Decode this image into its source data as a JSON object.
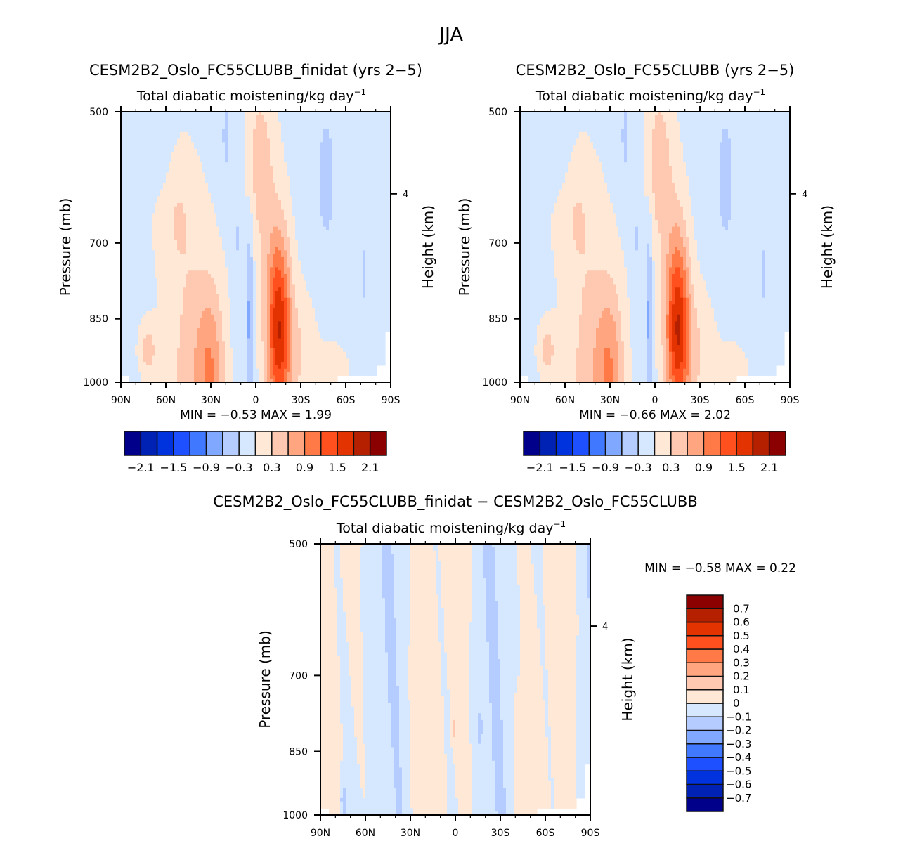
{
  "figure_title": "JJA",
  "chart_data": [
    {
      "type": "heatmap",
      "id": "panel1",
      "title": "CESM2B2_Oslo_FC55CLUBB_finidat (yrs 2−5)",
      "subtitle": "Total diabatic moistening/kg day",
      "subtitle_sup": "−1",
      "xlabel": "",
      "ylabel": "Pressure (mb)",
      "ylabel_right": "Height (km)",
      "x_ticks": [
        "90N",
        "60N",
        "30N",
        "0",
        "30S",
        "60S",
        "90S"
      ],
      "x_range": [
        90,
        -90
      ],
      "y_ticks": [
        "500",
        "700",
        "850",
        "1000"
      ],
      "y_tick_values": [
        500,
        700,
        850,
        1000
      ],
      "y_range": [
        500,
        1000
      ],
      "right_ticks": [
        "4"
      ],
      "right_tick_pressure": 617,
      "stats": "MIN =   −0.53   MAX =    1.99",
      "min": -0.53,
      "max": 1.99,
      "colorbar": {
        "orientation": "horizontal",
        "levels": [
          -2.1,
          -1.8,
          -1.5,
          -1.2,
          -0.9,
          -0.6,
          -0.3,
          0,
          0.3,
          0.6,
          0.9,
          1.2,
          1.5,
          1.8,
          2.1
        ],
        "labels": [
          "−2.1",
          "−1.5",
          "−0.9",
          "−0.3",
          "0.3",
          "0.9",
          "1.5",
          "2.1"
        ],
        "colors": [
          "#00008b",
          "#0022b4",
          "#0033dd",
          "#1e50ff",
          "#4078ff",
          "#80a8ff",
          "#b4ccff",
          "#d6e8ff",
          "#ffe8d6",
          "#ffc8b0",
          "#ffa680",
          "#ff7a46",
          "#ff501e",
          "#e33300",
          "#b42000",
          "#8b0000"
        ]
      },
      "field_peak": 1.99,
      "field_trough": -0.53
    },
    {
      "type": "heatmap",
      "id": "panel2",
      "title": "CESM2B2_Oslo_FC55CLUBB (yrs 2−5)",
      "subtitle": "Total diabatic moistening/kg day",
      "subtitle_sup": "−1",
      "ylabel": "Pressure (mb)",
      "ylabel_right": "Height (km)",
      "x_ticks": [
        "90N",
        "60N",
        "30N",
        "0",
        "30S",
        "60S",
        "90S"
      ],
      "x_range": [
        90,
        -90
      ],
      "y_ticks": [
        "500",
        "700",
        "850",
        "1000"
      ],
      "y_tick_values": [
        500,
        700,
        850,
        1000
      ],
      "y_range": [
        500,
        1000
      ],
      "right_ticks": [
        "4"
      ],
      "right_tick_pressure": 617,
      "stats": "MIN =   −0.66   MAX =    2.02",
      "min": -0.66,
      "max": 2.02,
      "colorbar": {
        "orientation": "horizontal",
        "levels": [
          -2.1,
          -1.8,
          -1.5,
          -1.2,
          -0.9,
          -0.6,
          -0.3,
          0,
          0.3,
          0.6,
          0.9,
          1.2,
          1.5,
          1.8,
          2.1
        ],
        "labels": [
          "−2.1",
          "−1.5",
          "−0.9",
          "−0.3",
          "0.3",
          "0.9",
          "1.5",
          "2.1"
        ],
        "colors": [
          "#00008b",
          "#0022b4",
          "#0033dd",
          "#1e50ff",
          "#4078ff",
          "#80a8ff",
          "#b4ccff",
          "#d6e8ff",
          "#ffe8d6",
          "#ffc8b0",
          "#ffa680",
          "#ff7a46",
          "#ff501e",
          "#e33300",
          "#b42000",
          "#8b0000"
        ]
      },
      "field_peak": 2.02,
      "field_trough": -0.66
    },
    {
      "type": "heatmap",
      "id": "panel3",
      "title": "CESM2B2_Oslo_FC55CLUBB_finidat − CESM2B2_Oslo_FC55CLUBB",
      "subtitle": "Total diabatic moistening/kg day",
      "subtitle_sup": "−1",
      "ylabel": "Pressure (mb)",
      "ylabel_right": "Height (km)",
      "x_ticks": [
        "90N",
        "60N",
        "30N",
        "0",
        "30S",
        "60S",
        "90S"
      ],
      "x_range": [
        90,
        -90
      ],
      "y_ticks": [
        "500",
        "700",
        "850",
        "1000"
      ],
      "y_tick_values": [
        500,
        700,
        850,
        1000
      ],
      "y_range": [
        500,
        1000
      ],
      "right_ticks": [
        "4"
      ],
      "right_tick_pressure": 617,
      "stats": "MIN =   −0.58   MAX =    0.22",
      "min": -0.58,
      "max": 0.22,
      "colorbar": {
        "orientation": "vertical",
        "levels": [
          -0.7,
          -0.6,
          -0.5,
          -0.4,
          -0.3,
          -0.2,
          -0.1,
          0,
          0.1,
          0.2,
          0.3,
          0.4,
          0.5,
          0.6,
          0.7
        ],
        "labels": [
          "−0.7",
          "−0.6",
          "−0.5",
          "−0.4",
          "−0.3",
          "−0.2",
          "−0.1",
          "0",
          "0.1",
          "0.2",
          "0.3",
          "0.4",
          "0.5",
          "0.6",
          "0.7"
        ],
        "colors": [
          "#00008b",
          "#0022b4",
          "#0033dd",
          "#1e50ff",
          "#4078ff",
          "#80a8ff",
          "#b4ccff",
          "#d6e8ff",
          "#ffe8d6",
          "#ffc8b0",
          "#ffa680",
          "#ff7a46",
          "#ff501e",
          "#e33300",
          "#b42000",
          "#8b0000"
        ]
      }
    }
  ]
}
